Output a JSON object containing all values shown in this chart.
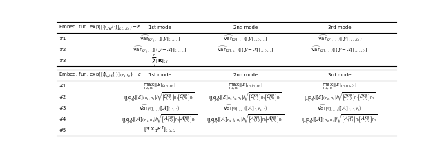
{
  "figsize": [
    6.4,
    2.25
  ],
  "dpi": 100,
  "bg_color": "#ffffff",
  "header1_col0": "Embed. fun. $\\exp([f^d_{\\mathrm{ft},\\mathcal{W}}(\\cdot)]_{j,t_1,t_2}) - \\epsilon$",
  "header1_col1": "1st mode",
  "header1_col2": "2nd mode",
  "header1_col3": "3rd mode",
  "header2_col0": "Embed. fun. $\\exp([f^d_{\\mathrm{ft},\\mathcal{M}}(\\cdot)]_{i,t_1,t_2}) - \\epsilon$",
  "header2_col1": "1st mode",
  "header2_col2": "2nd mode",
  "header2_col3": "3rd mode",
  "table1": [
    [
      "#1",
      "$\\widehat{\\mathrm{Var}}_{[\\mathcal{O}]_{j,:,:}}\\!\\left([\\mathcal{Y}]_{j,:,:}\\right)$",
      "$\\widehat{\\mathrm{Var}}_{[\\mathcal{O}]_{:,t_1,:}}\\!\\left([\\mathcal{Y}]_{:,t_1,:}\\right)$",
      "$\\widehat{\\mathrm{Var}}_{[\\mathcal{O}]_{:,:,t_2}}\\!\\left([\\mathcal{Y}]_{:,:,t_2}\\right)$"
    ],
    [
      "#2",
      "$\\widehat{\\mathrm{Var}}_{[\\mathcal{O}]_{j,:,:}}\\!\\left([(\\mathcal{Y}-\\mathcal{X})]_{j,:,:}\\right)$",
      "$\\widehat{\\mathrm{Var}}_{[\\mathcal{O}]_{:,t_1,:}}\\!\\left([(\\mathcal{Y}-\\mathcal{X})]_{:,t_1,:}\\right)$",
      "$\\widehat{\\mathrm{Var}}_{[\\mathcal{O}]_{:,:,t_2}}\\!\\left([(\\mathcal{Y}-\\mathcal{X})]_{:,:,t_2}\\right)$"
    ],
    [
      "#3",
      "$\\sum_i^F [\\mathbf{R}]_{j,i}$",
      "",
      ""
    ]
  ],
  "table2": [
    [
      "#1",
      "$\\max_{n_2,n_3}|[\\mathcal{E}]_{i,n_2,n_3}|$",
      "$\\max_{n_1,n_3}|[\\mathcal{E}]_{n_1,t_1,n_3}|$",
      "$\\max_{n_1,n_2}|[\\mathcal{E}]_{n_1,n_2,t_2}|$"
    ],
    [
      "#2",
      "$\\max_{n_2,n_3}|[\\mathcal{E}]_{i,n_2,n_3}|/\\!\\sqrt{\\left[\\mathcal{E}^{\\mathrm{var}}_{(2)}\\right]_{n_2}\\!\\left[\\mathcal{E}^{\\mathrm{var}}_{(3)}\\right]_{n_3}}$",
      "$\\max_{n_1,n_2}|[\\mathcal{E}]_{n_1,t_1,n_3}|/\\!\\sqrt{\\left[\\mathcal{E}^{\\mathrm{var}}_{(1)}\\right]_{n_1}\\!\\left[\\mathcal{E}^{\\mathrm{var}}_{(3)}\\right]_{n_3}}$",
      "$\\max_{n_2,n_3}|[\\mathcal{E}]_{i,n_2,n_3}|/\\!\\sqrt{\\left[\\mathcal{E}^{\\mathrm{var}}_{(1)}\\right]_{n_1}\\!\\left[\\mathcal{E}^{\\mathrm{var}}_{(2)}\\right]_{n_2}}$"
    ],
    [
      "#3",
      "$\\widehat{\\mathrm{Var}}_{[\\mathcal{O}]_{i,:,:}}\\!\\left([\\mathcal{A}]_{i,:,:}\\right)$",
      "$\\widehat{\\mathrm{Var}}_{[\\mathcal{O}]_{:,t_1,:}}\\!\\left([\\mathcal{A}]_{:,t_1,:}\\right)$",
      "$\\widehat{\\mathrm{Var}}_{[\\mathcal{O}]_{:,:,t_2}}\\!\\left([\\mathcal{A}]_{:,:,t_2}\\right)$"
    ],
    [
      "#4",
      "$\\max_{n_2,n_3}|[\\mathcal{A}]_{i,n_2,n_3}|/\\!\\sqrt{\\left[\\mathcal{A}^{\\mathrm{var}}_{(2)}\\right]_{n_2}\\!\\left[\\mathcal{A}^{\\mathrm{var}}_{(3)}\\right]_{n_3}}$",
      "$\\max_{n_1,n_2}|[\\mathcal{A}]_{n_1,t_1,n_3}|/\\!\\sqrt{\\left[\\mathcal{A}^{\\mathrm{var}}_{(1)}\\right]_{n_1}\\!\\left[\\mathcal{A}^{\\mathrm{var}}_{(3)}\\right]_{n_3}}$",
      "$\\max_{n_2,n_3}|[\\mathcal{A}]_{i,n_2,n_3}|/\\!\\sqrt{\\left[\\mathcal{A}^{\\mathrm{var}}_{(1)}\\right]_{n_1}\\!\\left[\\mathcal{A}^{\\mathrm{var}}_{(2)}\\right]_{n_2}}$"
    ],
    [
      "#5",
      "$[\\mathcal{O}\\times_1 R^{\\mathrm{T}}]_{i,t_1,t_2}$",
      "",
      ""
    ]
  ],
  "fontsize": 5.0,
  "header_fontsize": 5.0
}
